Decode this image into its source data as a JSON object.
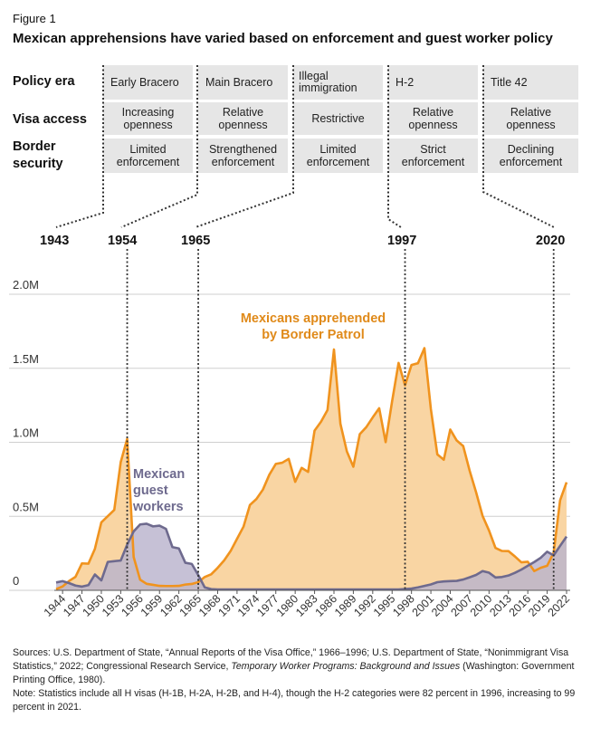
{
  "figure_label": "Figure 1",
  "title": "Mexican apprehensions have varied based on enforcement and guest worker policy",
  "policy_table": {
    "row_labels": {
      "era": "Policy era",
      "visa": "Visa access",
      "border_line1": "Border",
      "border_line2": "security"
    },
    "eras": [
      {
        "era": "Early Bracero",
        "visa1": "Increasing",
        "visa2": "openness",
        "border1": "Limited",
        "border2": "enforcement"
      },
      {
        "era": "Main Bracero",
        "visa1": "Relative",
        "visa2": "openness",
        "border1": "Strengthened",
        "border2": "enforcement"
      },
      {
        "era1": "Illegal",
        "era2": "immigration",
        "visa": "Restrictive",
        "border1": "Limited",
        "border2": "enforcement"
      },
      {
        "era": "H-2",
        "visa1": "Relative",
        "visa2": "openness",
        "border1": "Strict",
        "border2": "enforcement"
      },
      {
        "era": "Title 42",
        "visa1": "Relative",
        "visa2": "openness",
        "border1": "Declining",
        "border2": "enforcement"
      }
    ],
    "boundary_years": [
      "1943",
      "1954",
      "1965",
      "1997",
      "2020"
    ]
  },
  "chart_data": {
    "type": "area",
    "title": "Mexican apprehensions have varied based on enforcement and guest worker policy",
    "xlabel": "",
    "ylabel": "",
    "ylim": [
      0,
      2000000
    ],
    "xlim": [
      1943,
      2022
    ],
    "y_ticks": [
      0,
      500000,
      1000000,
      1500000,
      2000000
    ],
    "y_tick_labels": [
      "0",
      "0.5M",
      "1.0M",
      "1.5M",
      "2.0M"
    ],
    "x_tick_labels": [
      "1944",
      "1947",
      "1950",
      "1953",
      "1956",
      "1959",
      "1962",
      "1965",
      "1968",
      "1971",
      "1974",
      "1977",
      "1980",
      "1983",
      "1986",
      "1989",
      "1992",
      "1995",
      "1998",
      "2001",
      "2004",
      "2007",
      "2010",
      "2013",
      "2016",
      "2019",
      "2022"
    ],
    "x": [
      1943,
      1944,
      1945,
      1946,
      1947,
      1948,
      1949,
      1950,
      1951,
      1952,
      1953,
      1954,
      1955,
      1956,
      1957,
      1958,
      1959,
      1960,
      1961,
      1962,
      1963,
      1964,
      1965,
      1966,
      1967,
      1968,
      1969,
      1970,
      1971,
      1972,
      1973,
      1974,
      1975,
      1976,
      1977,
      1978,
      1979,
      1980,
      1981,
      1982,
      1983,
      1984,
      1985,
      1986,
      1987,
      1988,
      1989,
      1990,
      1991,
      1992,
      1993,
      1994,
      1995,
      1996,
      1997,
      1998,
      1999,
      2000,
      2001,
      2002,
      2003,
      2004,
      2005,
      2006,
      2007,
      2008,
      2009,
      2010,
      2011,
      2012,
      2013,
      2014,
      2015,
      2016,
      2017,
      2018,
      2019,
      2020,
      2021,
      2022
    ],
    "series": [
      {
        "name": "Mexicans apprehended by Border Patrol",
        "color": "#f0931e",
        "fill": "#f9d5a3",
        "values": [
          8000,
          26000,
          63000,
          91000,
          182000,
          180000,
          280000,
          459000,
          501000,
          543000,
          866000,
          1023000,
          225000,
          72000,
          44000,
          37000,
          30000,
          29000,
          29000,
          30000,
          39000,
          43000,
          55000,
          90000,
          108000,
          152000,
          202000,
          265000,
          348000,
          430000,
          577000,
          617000,
          680000,
          781000,
          854000,
          862000,
          888000,
          733000,
          827000,
          800000,
          1079000,
          1139000,
          1218000,
          1627000,
          1125000,
          938000,
          835000,
          1055000,
          1102000,
          1168000,
          1230000,
          1001000,
          1277000,
          1536000,
          1385000,
          1522000,
          1534000,
          1636000,
          1224000,
          918000,
          882000,
          1086000,
          1012000,
          975000,
          808000,
          662000,
          503000,
          404000,
          286000,
          266000,
          265000,
          229000,
          189000,
          193000,
          130000,
          152000,
          166000,
          254000,
          608000,
          730000
        ]
      },
      {
        "name": "Mexican guest workers",
        "color": "#6e6a8e",
        "fill": "#b9b3cd",
        "values": [
          53000,
          62000,
          49000,
          32000,
          25000,
          35000,
          107000,
          67000,
          192000,
          197000,
          201000,
          309000,
          398000,
          445000,
          450000,
          432000,
          437000,
          415000,
          292000,
          283000,
          186000,
          178000,
          103000,
          20000,
          8000,
          6000,
          6000,
          6000,
          6000,
          6000,
          6000,
          6000,
          6000,
          6000,
          6000,
          6000,
          6000,
          6000,
          6000,
          6000,
          6000,
          6000,
          6000,
          6000,
          6000,
          6000,
          6000,
          6000,
          6000,
          6000,
          6000,
          6000,
          6000,
          6000,
          9000,
          12000,
          20000,
          30000,
          40000,
          55000,
          60000,
          62000,
          64000,
          73000,
          88000,
          104000,
          130000,
          119000,
          87000,
          90000,
          100000,
          118000,
          140000,
          166000,
          191000,
          220000,
          261000,
          236000,
          300000,
          363000
        ]
      }
    ],
    "annotations": [
      {
        "text_line1": "Mexicans apprehended",
        "text_line2": "by Border Patrol",
        "color": "#e08a1a"
      },
      {
        "text_line1": "Mexican",
        "text_line2": "guest",
        "text_line3": "workers",
        "color": "#6e6a8e"
      }
    ],
    "policy_break_years": [
      1954,
      1965,
      1997,
      2020
    ]
  },
  "notes": {
    "sources_a": "Sources: U.S. Department of State, “Annual Reports of the Visa Office,” 1966–1996; U.S. Department of State, “Nonimmigrant Visa Statistics,” 2022; Congressional Research Service, ",
    "sources_italic": "Temporary Worker Programs: Background and Issues",
    "sources_b": " (Washington: Government Printing Office, 1980).",
    "note": "Note: Statistics include all H visas (H-1B, H-2A, H-2B, and H-4), though the H-2 categories were 82 percent in 1996, increasing to 99 percent in 2021."
  }
}
